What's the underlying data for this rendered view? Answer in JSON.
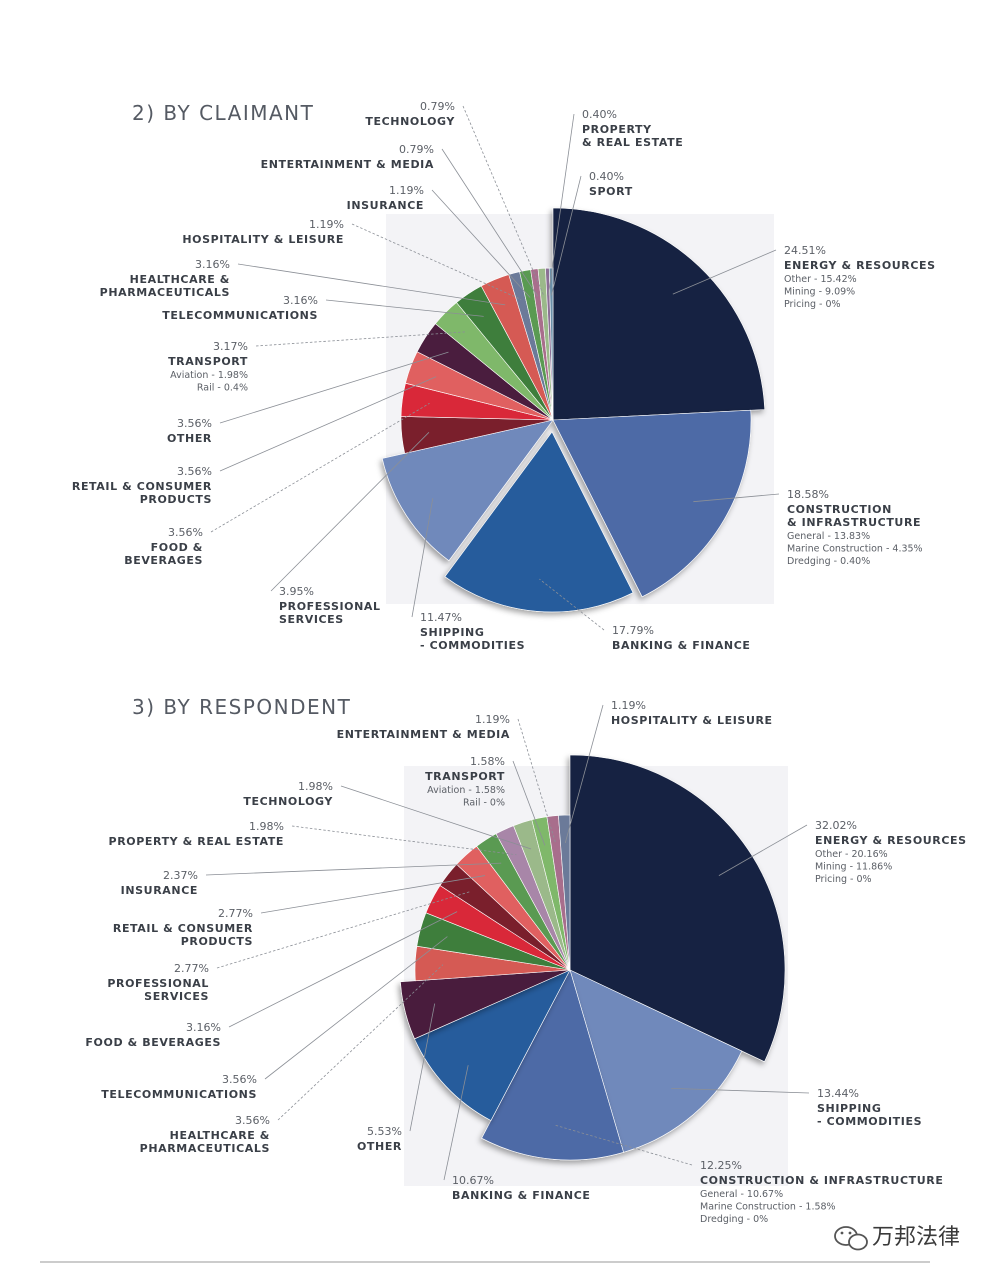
{
  "chart_data": [
    {
      "type": "pie",
      "title": "2) BY CLAIMANT",
      "slices": [
        {
          "name": "ENERGY & RESOURCES",
          "value": 24.51,
          "pct": "24.51%",
          "sub": [
            "Other - 15.42%",
            "Mining  - 9.09%",
            "Pricing - 0%"
          ],
          "color": "#182442"
        },
        {
          "name": "CONSTRUCTION & INFRASTRUCTURE",
          "lines": [
            "CONSTRUCTION",
            "& INFRASTRUCTURE"
          ],
          "value": 18.58,
          "pct": "18.58%",
          "sub": [
            "General - 13.83%",
            "Marine Construction - 4.35%",
            "Dredging - 0.40%"
          ],
          "color": "#4d6aa6"
        },
        {
          "name": "BANKING & FINANCE",
          "value": 17.79,
          "pct": "17.79%",
          "color": "#265c9c"
        },
        {
          "name": "SHIPPING - COMMODITIES",
          "lines": [
            "SHIPPING",
            " - COMMODITIES"
          ],
          "value": 11.47,
          "pct": "11.47%",
          "color": "#7089bb"
        },
        {
          "name": "PROFESSIONAL SERVICES",
          "lines": [
            "PROFESSIONAL",
            "SERVICES"
          ],
          "value": 3.95,
          "pct": "3.95%",
          "color": "#7a1f2c"
        },
        {
          "name": "FOOD & BEVERAGES",
          "lines": [
            "FOOD &",
            "BEVERAGES"
          ],
          "value": 3.56,
          "pct": "3.56%",
          "color": "#d92839"
        },
        {
          "name": "RETAIL & CONSUMER PRODUCTS",
          "lines": [
            "RETAIL & CONSUMER",
            "PRODUCTS"
          ],
          "value": 3.56,
          "pct": "3.56%",
          "color": "#e06060"
        },
        {
          "name": "OTHER",
          "value": 3.56,
          "pct": "3.56%",
          "color": "#4a1d3e"
        },
        {
          "name": "TRANSPORT",
          "value": 3.17,
          "pct": "3.17%",
          "sub": [
            "Aviation - 1.98%",
            "Rail - 0.4%"
          ],
          "color": "#7fb86a"
        },
        {
          "name": "TELECOMMUNICATIONS",
          "value": 3.16,
          "pct": "3.16%",
          "color": "#3e7e3c"
        },
        {
          "name": "HEALTHCARE & PHARMACEUTICALS",
          "lines": [
            "HEALTHCARE &",
            "PHARMACEUTICALS"
          ],
          "value": 3.16,
          "pct": "3.16%",
          "color": "#d55a54"
        },
        {
          "name": "HOSPITALITY & LEISURE",
          "value": 1.19,
          "pct": "1.19%",
          "color": "#6b7a99"
        },
        {
          "name": "INSURANCE",
          "value": 1.19,
          "pct": "1.19%",
          "color": "#5a9a52"
        },
        {
          "name": "ENTERTAINMENT & MEDIA",
          "value": 0.79,
          "pct": "0.79%",
          "color": "#a86e8c"
        },
        {
          "name": "TECHNOLOGY",
          "value": 0.79,
          "pct": "0.79%",
          "color": "#9bb98a"
        },
        {
          "name": "PROPERTY & REAL ESTATE",
          "lines": [
            "PROPERTY",
            "& REAL ESTATE"
          ],
          "value": 0.4,
          "pct": "0.40%",
          "color": "#8b6f95"
        },
        {
          "name": "SPORT",
          "value": 0.4,
          "pct": "0.40%",
          "color": "#6a8fa8"
        }
      ]
    },
    {
      "type": "pie",
      "title": "3) BY RESPONDENT",
      "slices": [
        {
          "name": "ENERGY & RESOURCES",
          "value": 32.02,
          "pct": "32.02%",
          "sub": [
            "Other - 20.16%",
            "Mining  - 11.86%",
            "Pricing - 0%"
          ],
          "color": "#182442"
        },
        {
          "name": "SHIPPING - COMMODITIES",
          "lines": [
            "SHIPPING",
            " - COMMODITIES"
          ],
          "value": 13.44,
          "pct": "13.44%",
          "color": "#7089bb"
        },
        {
          "name": "CONSTRUCTION & INFRASTRUCTURE",
          "value": 12.25,
          "pct": "12.25%",
          "sub": [
            "General - 10.67%",
            "Marine Construction - 1.58%",
            "Dredging - 0%"
          ],
          "color": "#4d6aa6"
        },
        {
          "name": "BANKING & FINANCE",
          "value": 10.67,
          "pct": "10.67%",
          "color": "#265c9c"
        },
        {
          "name": "OTHER",
          "value": 5.53,
          "pct": "5.53%",
          "color": "#4a1d3e"
        },
        {
          "name": "HEALTHCARE & PHARMACEUTICALS",
          "lines": [
            "HEALTHCARE &",
            "PHARMACEUTICALS"
          ],
          "value": 3.56,
          "pct": "3.56%",
          "color": "#d55a54"
        },
        {
          "name": "TELECOMMUNICATIONS",
          "value": 3.56,
          "pct": "3.56%",
          "color": "#3e7e3c"
        },
        {
          "name": "FOOD & BEVERAGES",
          "value": 3.16,
          "pct": "3.16%",
          "color": "#d92839"
        },
        {
          "name": "PROFESSIONAL SERVICES",
          "lines": [
            "PROFESSIONAL",
            "SERVICES"
          ],
          "value": 2.77,
          "pct": "2.77%",
          "color": "#7a1f2c"
        },
        {
          "name": "RETAIL & CONSUMER PRODUCTS",
          "lines": [
            "RETAIL & CONSUMER",
            "PRODUCTS"
          ],
          "value": 2.77,
          "pct": "2.77%",
          "color": "#e06060"
        },
        {
          "name": "INSURANCE",
          "value": 2.37,
          "pct": "2.37%",
          "color": "#5a9a52"
        },
        {
          "name": "PROPERTY & REAL ESTATE",
          "value": 1.98,
          "pct": "1.98%",
          "color": "#a886a8"
        },
        {
          "name": "TECHNOLOGY",
          "value": 1.98,
          "pct": "1.98%",
          "color": "#9bb98a"
        },
        {
          "name": "TRANSPORT",
          "value": 1.58,
          "pct": "1.58%",
          "sub": [
            "Aviation - 1.58%",
            "Rail - 0%"
          ],
          "color": "#7fb86a"
        },
        {
          "name": "ENTERTAINMENT & MEDIA",
          "value": 1.19,
          "pct": "1.19%",
          "color": "#a86e8c"
        },
        {
          "name": "HOSPITALITY & LEISURE",
          "value": 1.19,
          "pct": "1.19%",
          "color": "#6b7a99"
        }
      ]
    }
  ],
  "watermark": {
    "text": "万邦法律",
    "icon": "wechat-icon"
  }
}
